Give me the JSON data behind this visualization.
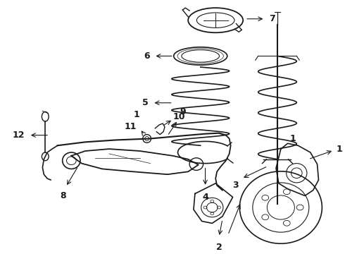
{
  "bg_color": "#ffffff",
  "line_color": "#1a1a1a",
  "lw": 1.0,
  "figsize": [
    4.9,
    3.6
  ],
  "dpi": 100
}
